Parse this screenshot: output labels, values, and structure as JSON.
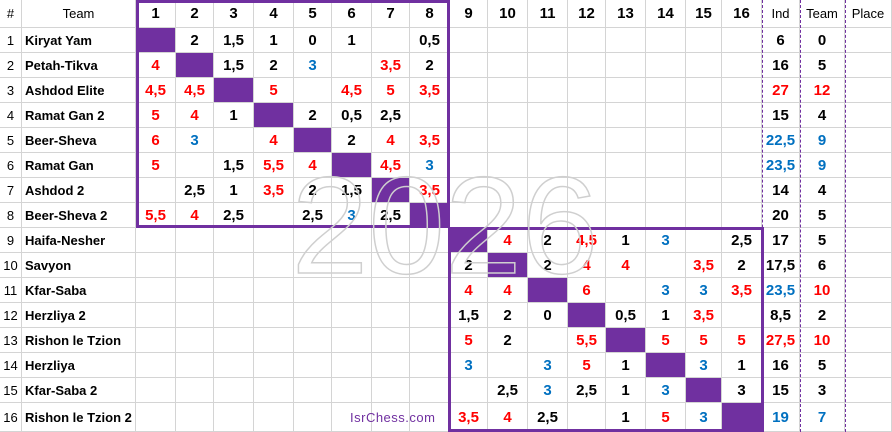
{
  "header": {
    "hash": "#",
    "team": "Team",
    "ind": "Ind",
    "team_total": "Team",
    "place": "Place",
    "columns": [
      "1",
      "2",
      "3",
      "4",
      "5",
      "6",
      "7",
      "8",
      "9",
      "10",
      "11",
      "12",
      "13",
      "14",
      "15",
      "16"
    ]
  },
  "colors": {
    "black": "#000000",
    "red": "#ff0000",
    "blue": "#0070c0",
    "purple": "#7030a0"
  },
  "rows": [
    {
      "num": "1",
      "team": "Kiryat Yam",
      "scores": [
        [
          "",
          ""
        ],
        [
          "2",
          "k"
        ],
        [
          "1,5",
          "k"
        ],
        [
          "1",
          "k"
        ],
        [
          "0",
          "k"
        ],
        [
          "1",
          "k"
        ],
        [
          "",
          ""
        ],
        [
          "0,5",
          "k"
        ],
        [
          "",
          ""
        ],
        [
          "",
          ""
        ],
        [
          "",
          ""
        ],
        [
          "",
          ""
        ],
        [
          "",
          ""
        ],
        [
          "",
          ""
        ],
        [
          "",
          ""
        ],
        [
          "",
          ""
        ]
      ],
      "ind": [
        "6",
        "k"
      ],
      "team_total": [
        "0",
        "k"
      ]
    },
    {
      "num": "2",
      "team": "Petah-Tikva",
      "scores": [
        [
          "4",
          "r"
        ],
        [
          "",
          ""
        ],
        [
          "1,5",
          "k"
        ],
        [
          "2",
          "k"
        ],
        [
          "3",
          "b"
        ],
        [
          "",
          ""
        ],
        [
          "3,5",
          "r"
        ],
        [
          "2",
          "k"
        ],
        [
          "",
          ""
        ],
        [
          "",
          ""
        ],
        [
          "",
          ""
        ],
        [
          "",
          ""
        ],
        [
          "",
          ""
        ],
        [
          "",
          ""
        ],
        [
          "",
          ""
        ],
        [
          "",
          ""
        ]
      ],
      "ind": [
        "16",
        "k"
      ],
      "team_total": [
        "5",
        "k"
      ]
    },
    {
      "num": "3",
      "team": "Ashdod Elite",
      "scores": [
        [
          "4,5",
          "r"
        ],
        [
          "4,5",
          "r"
        ],
        [
          "",
          ""
        ],
        [
          "5",
          "r"
        ],
        [
          "",
          ""
        ],
        [
          "4,5",
          "r"
        ],
        [
          "5",
          "r"
        ],
        [
          "3,5",
          "r"
        ],
        [
          "",
          ""
        ],
        [
          "",
          ""
        ],
        [
          "",
          ""
        ],
        [
          "",
          ""
        ],
        [
          "",
          ""
        ],
        [
          "",
          ""
        ],
        [
          "",
          ""
        ],
        [
          "",
          ""
        ]
      ],
      "ind": [
        "27",
        "r"
      ],
      "team_total": [
        "12",
        "r"
      ]
    },
    {
      "num": "4",
      "team": "Ramat Gan 2",
      "scores": [
        [
          "5",
          "r"
        ],
        [
          "4",
          "r"
        ],
        [
          "1",
          "k"
        ],
        [
          "",
          ""
        ],
        [
          "2",
          "k"
        ],
        [
          "0,5",
          "k"
        ],
        [
          "2,5",
          "k"
        ],
        [
          "",
          ""
        ],
        [
          "",
          ""
        ],
        [
          "",
          ""
        ],
        [
          "",
          ""
        ],
        [
          "",
          ""
        ],
        [
          "",
          ""
        ],
        [
          "",
          ""
        ],
        [
          "",
          ""
        ],
        [
          "",
          ""
        ]
      ],
      "ind": [
        "15",
        "k"
      ],
      "team_total": [
        "4",
        "k"
      ]
    },
    {
      "num": "5",
      "team": "Beer-Sheva",
      "scores": [
        [
          "6",
          "r"
        ],
        [
          "3",
          "b"
        ],
        [
          "",
          ""
        ],
        [
          "4",
          "r"
        ],
        [
          "",
          ""
        ],
        [
          "2",
          "k"
        ],
        [
          "4",
          "r"
        ],
        [
          "3,5",
          "r"
        ],
        [
          "",
          ""
        ],
        [
          "",
          ""
        ],
        [
          "",
          ""
        ],
        [
          "",
          ""
        ],
        [
          "",
          ""
        ],
        [
          "",
          ""
        ],
        [
          "",
          ""
        ],
        [
          "",
          ""
        ]
      ],
      "ind": [
        "22,5",
        "b"
      ],
      "team_total": [
        "9",
        "b"
      ]
    },
    {
      "num": "6",
      "team": "Ramat Gan",
      "scores": [
        [
          "5",
          "r"
        ],
        [
          "",
          ""
        ],
        [
          "1,5",
          "k"
        ],
        [
          "5,5",
          "r"
        ],
        [
          "4",
          "r"
        ],
        [
          "",
          ""
        ],
        [
          "4,5",
          "r"
        ],
        [
          "3",
          "b"
        ],
        [
          "",
          ""
        ],
        [
          "",
          ""
        ],
        [
          "",
          ""
        ],
        [
          "",
          ""
        ],
        [
          "",
          ""
        ],
        [
          "",
          ""
        ],
        [
          "",
          ""
        ],
        [
          "",
          ""
        ]
      ],
      "ind": [
        "23,5",
        "b"
      ],
      "team_total": [
        "9",
        "b"
      ]
    },
    {
      "num": "7",
      "team": "Ashdod 2",
      "scores": [
        [
          "",
          ""
        ],
        [
          "2,5",
          "k"
        ],
        [
          "1",
          "k"
        ],
        [
          "3,5",
          "r"
        ],
        [
          "2",
          "k"
        ],
        [
          "1,5",
          "k"
        ],
        [
          "",
          ""
        ],
        [
          "3,5",
          "r"
        ],
        [
          "",
          ""
        ],
        [
          "",
          ""
        ],
        [
          "",
          ""
        ],
        [
          "",
          ""
        ],
        [
          "",
          ""
        ],
        [
          "",
          ""
        ],
        [
          "",
          ""
        ],
        [
          "",
          ""
        ]
      ],
      "ind": [
        "14",
        "k"
      ],
      "team_total": [
        "4",
        "k"
      ]
    },
    {
      "num": "8",
      "team": "Beer-Sheva 2",
      "scores": [
        [
          "5,5",
          "r"
        ],
        [
          "4",
          "r"
        ],
        [
          "2,5",
          "k"
        ],
        [
          "",
          ""
        ],
        [
          "2,5",
          "k"
        ],
        [
          "3",
          "b"
        ],
        [
          "2,5",
          "k"
        ],
        [
          "",
          ""
        ],
        [
          "",
          ""
        ],
        [
          "",
          ""
        ],
        [
          "",
          ""
        ],
        [
          "",
          ""
        ],
        [
          "",
          ""
        ],
        [
          "",
          ""
        ],
        [
          "",
          ""
        ],
        [
          "",
          ""
        ]
      ],
      "ind": [
        "20",
        "k"
      ],
      "team_total": [
        "5",
        "k"
      ]
    },
    {
      "num": "9",
      "team": "Haifa-Nesher",
      "scores": [
        [
          "",
          ""
        ],
        [
          "",
          ""
        ],
        [
          "",
          ""
        ],
        [
          "",
          ""
        ],
        [
          "",
          ""
        ],
        [
          "",
          ""
        ],
        [
          "",
          ""
        ],
        [
          "",
          ""
        ],
        [
          "",
          ""
        ],
        [
          "4",
          "r"
        ],
        [
          "2",
          "k"
        ],
        [
          "4,5",
          "r"
        ],
        [
          "1",
          "k"
        ],
        [
          "3",
          "b"
        ],
        [
          "",
          ""
        ],
        [
          "2,5",
          "k"
        ]
      ],
      "ind": [
        "17",
        "k"
      ],
      "team_total": [
        "5",
        "k"
      ]
    },
    {
      "num": "10",
      "team": "Savyon",
      "scores": [
        [
          "",
          ""
        ],
        [
          "",
          ""
        ],
        [
          "",
          ""
        ],
        [
          "",
          ""
        ],
        [
          "",
          ""
        ],
        [
          "",
          ""
        ],
        [
          "",
          ""
        ],
        [
          "",
          ""
        ],
        [
          "2",
          "k"
        ],
        [
          "",
          ""
        ],
        [
          "2",
          "k"
        ],
        [
          "4",
          "r"
        ],
        [
          "4",
          "r"
        ],
        [
          "",
          ""
        ],
        [
          "3,5",
          "r"
        ],
        [
          "2",
          "k"
        ]
      ],
      "ind": [
        "17,5",
        "k"
      ],
      "team_total": [
        "6",
        "k"
      ]
    },
    {
      "num": "11",
      "team": "Kfar-Saba",
      "scores": [
        [
          "",
          ""
        ],
        [
          "",
          ""
        ],
        [
          "",
          ""
        ],
        [
          "",
          ""
        ],
        [
          "",
          ""
        ],
        [
          "",
          ""
        ],
        [
          "",
          ""
        ],
        [
          "",
          ""
        ],
        [
          "4",
          "r"
        ],
        [
          "4",
          "r"
        ],
        [
          "",
          ""
        ],
        [
          "6",
          "r"
        ],
        [
          "",
          ""
        ],
        [
          "3",
          "b"
        ],
        [
          "3",
          "b"
        ],
        [
          "3,5",
          "r"
        ]
      ],
      "ind": [
        "23,5",
        "b"
      ],
      "team_total": [
        "10",
        "r"
      ]
    },
    {
      "num": "12",
      "team": "Herzliya 2",
      "scores": [
        [
          "",
          ""
        ],
        [
          "",
          ""
        ],
        [
          "",
          ""
        ],
        [
          "",
          ""
        ],
        [
          "",
          ""
        ],
        [
          "",
          ""
        ],
        [
          "",
          ""
        ],
        [
          "",
          ""
        ],
        [
          "1,5",
          "k"
        ],
        [
          "2",
          "k"
        ],
        [
          "0",
          "k"
        ],
        [
          "",
          ""
        ],
        [
          "0,5",
          "k"
        ],
        [
          "1",
          "k"
        ],
        [
          "3,5",
          "r"
        ],
        [
          "",
          ""
        ]
      ],
      "ind": [
        "8,5",
        "k"
      ],
      "team_total": [
        "2",
        "k"
      ]
    },
    {
      "num": "13",
      "team": "Rishon le Tzion",
      "scores": [
        [
          "",
          ""
        ],
        [
          "",
          ""
        ],
        [
          "",
          ""
        ],
        [
          "",
          ""
        ],
        [
          "",
          ""
        ],
        [
          "",
          ""
        ],
        [
          "",
          ""
        ],
        [
          "",
          ""
        ],
        [
          "5",
          "r"
        ],
        [
          "2",
          "k"
        ],
        [
          "",
          ""
        ],
        [
          "5,5",
          "r"
        ],
        [
          "",
          ""
        ],
        [
          "5",
          "r"
        ],
        [
          "5",
          "r"
        ],
        [
          "5",
          "r"
        ]
      ],
      "ind": [
        "27,5",
        "r"
      ],
      "team_total": [
        "10",
        "r"
      ]
    },
    {
      "num": "14",
      "team": "Herzliya",
      "scores": [
        [
          "",
          ""
        ],
        [
          "",
          ""
        ],
        [
          "",
          ""
        ],
        [
          "",
          ""
        ],
        [
          "",
          ""
        ],
        [
          "",
          ""
        ],
        [
          "",
          ""
        ],
        [
          "",
          ""
        ],
        [
          "3",
          "b"
        ],
        [
          "",
          ""
        ],
        [
          "3",
          "b"
        ],
        [
          "5",
          "r"
        ],
        [
          "1",
          "k"
        ],
        [
          "",
          ""
        ],
        [
          "3",
          "b"
        ],
        [
          "1",
          "k"
        ]
      ],
      "ind": [
        "16",
        "k"
      ],
      "team_total": [
        "5",
        "k"
      ]
    },
    {
      "num": "15",
      "team": "Kfar-Saba 2",
      "scores": [
        [
          "",
          ""
        ],
        [
          "",
          ""
        ],
        [
          "",
          ""
        ],
        [
          "",
          ""
        ],
        [
          "",
          ""
        ],
        [
          "",
          ""
        ],
        [
          "",
          ""
        ],
        [
          "",
          ""
        ],
        [
          "",
          ""
        ],
        [
          "2,5",
          "k"
        ],
        [
          "3",
          "b"
        ],
        [
          "2,5",
          "k"
        ],
        [
          "1",
          "k"
        ],
        [
          "3",
          "b"
        ],
        [
          "",
          ""
        ],
        [
          "3",
          "k"
        ]
      ],
      "ind": [
        "15",
        "k"
      ],
      "team_total": [
        "3",
        "k"
      ]
    },
    {
      "num": "16",
      "team": "Rishon le Tzion 2",
      "scores": [
        [
          "",
          ""
        ],
        [
          "",
          ""
        ],
        [
          "",
          ""
        ],
        [
          "",
          ""
        ],
        [
          "",
          ""
        ],
        [
          "",
          ""
        ],
        [
          "",
          ""
        ],
        [
          "",
          ""
        ],
        [
          "3,5",
          "r"
        ],
        [
          "4",
          "r"
        ],
        [
          "2,5",
          "k"
        ],
        [
          "",
          ""
        ],
        [
          "1",
          "k"
        ],
        [
          "5",
          "r"
        ],
        [
          "3",
          "b"
        ],
        [
          "",
          ""
        ]
      ],
      "ind": [
        "19",
        "b"
      ],
      "team_total": [
        "7",
        "b"
      ]
    }
  ],
  "watermark": "2026",
  "site": "IsrChess.com"
}
